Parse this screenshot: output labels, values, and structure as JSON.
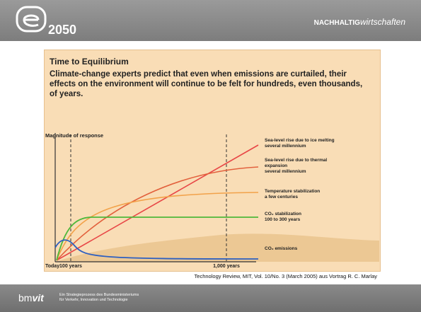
{
  "header": {
    "logo": "2050",
    "brand_left": "NACHHALTIG",
    "brand_right": "wirtschaften"
  },
  "slide": {
    "title": "Time to Equilibrium",
    "subtitle": "Climate-change experts predict that even when emissions are curtailed, their effects on the environment will continue to be felt for hundreds, even thousands, of years.",
    "axis_label": "Magnitude of response",
    "x_labels": [
      "Today",
      "100 years",
      "1,000 years"
    ],
    "curve_labels": [
      [
        "Sea-level rise due to ice melting",
        "several millennium"
      ],
      [
        "Sea-level rise due to thermal",
        "expansion",
        "several millennium"
      ],
      [
        "Temperature stabilization",
        "a few centuries"
      ],
      [
        "CO₂ stabilization",
        "100 to 300 years"
      ],
      [
        "CO₂ emissions"
      ]
    ],
    "source": "Technology Review, MIT, Vol. 10/No. 3 (March 2005) aus Vortrag R. C. Marlay"
  },
  "footer": {
    "logo_left": "bm",
    "logo_right": "vit",
    "lines": [
      "Ein Strategieprozess des Bundesministeriums",
      "für Verkehr, Innovation und Technologie"
    ]
  }
}
